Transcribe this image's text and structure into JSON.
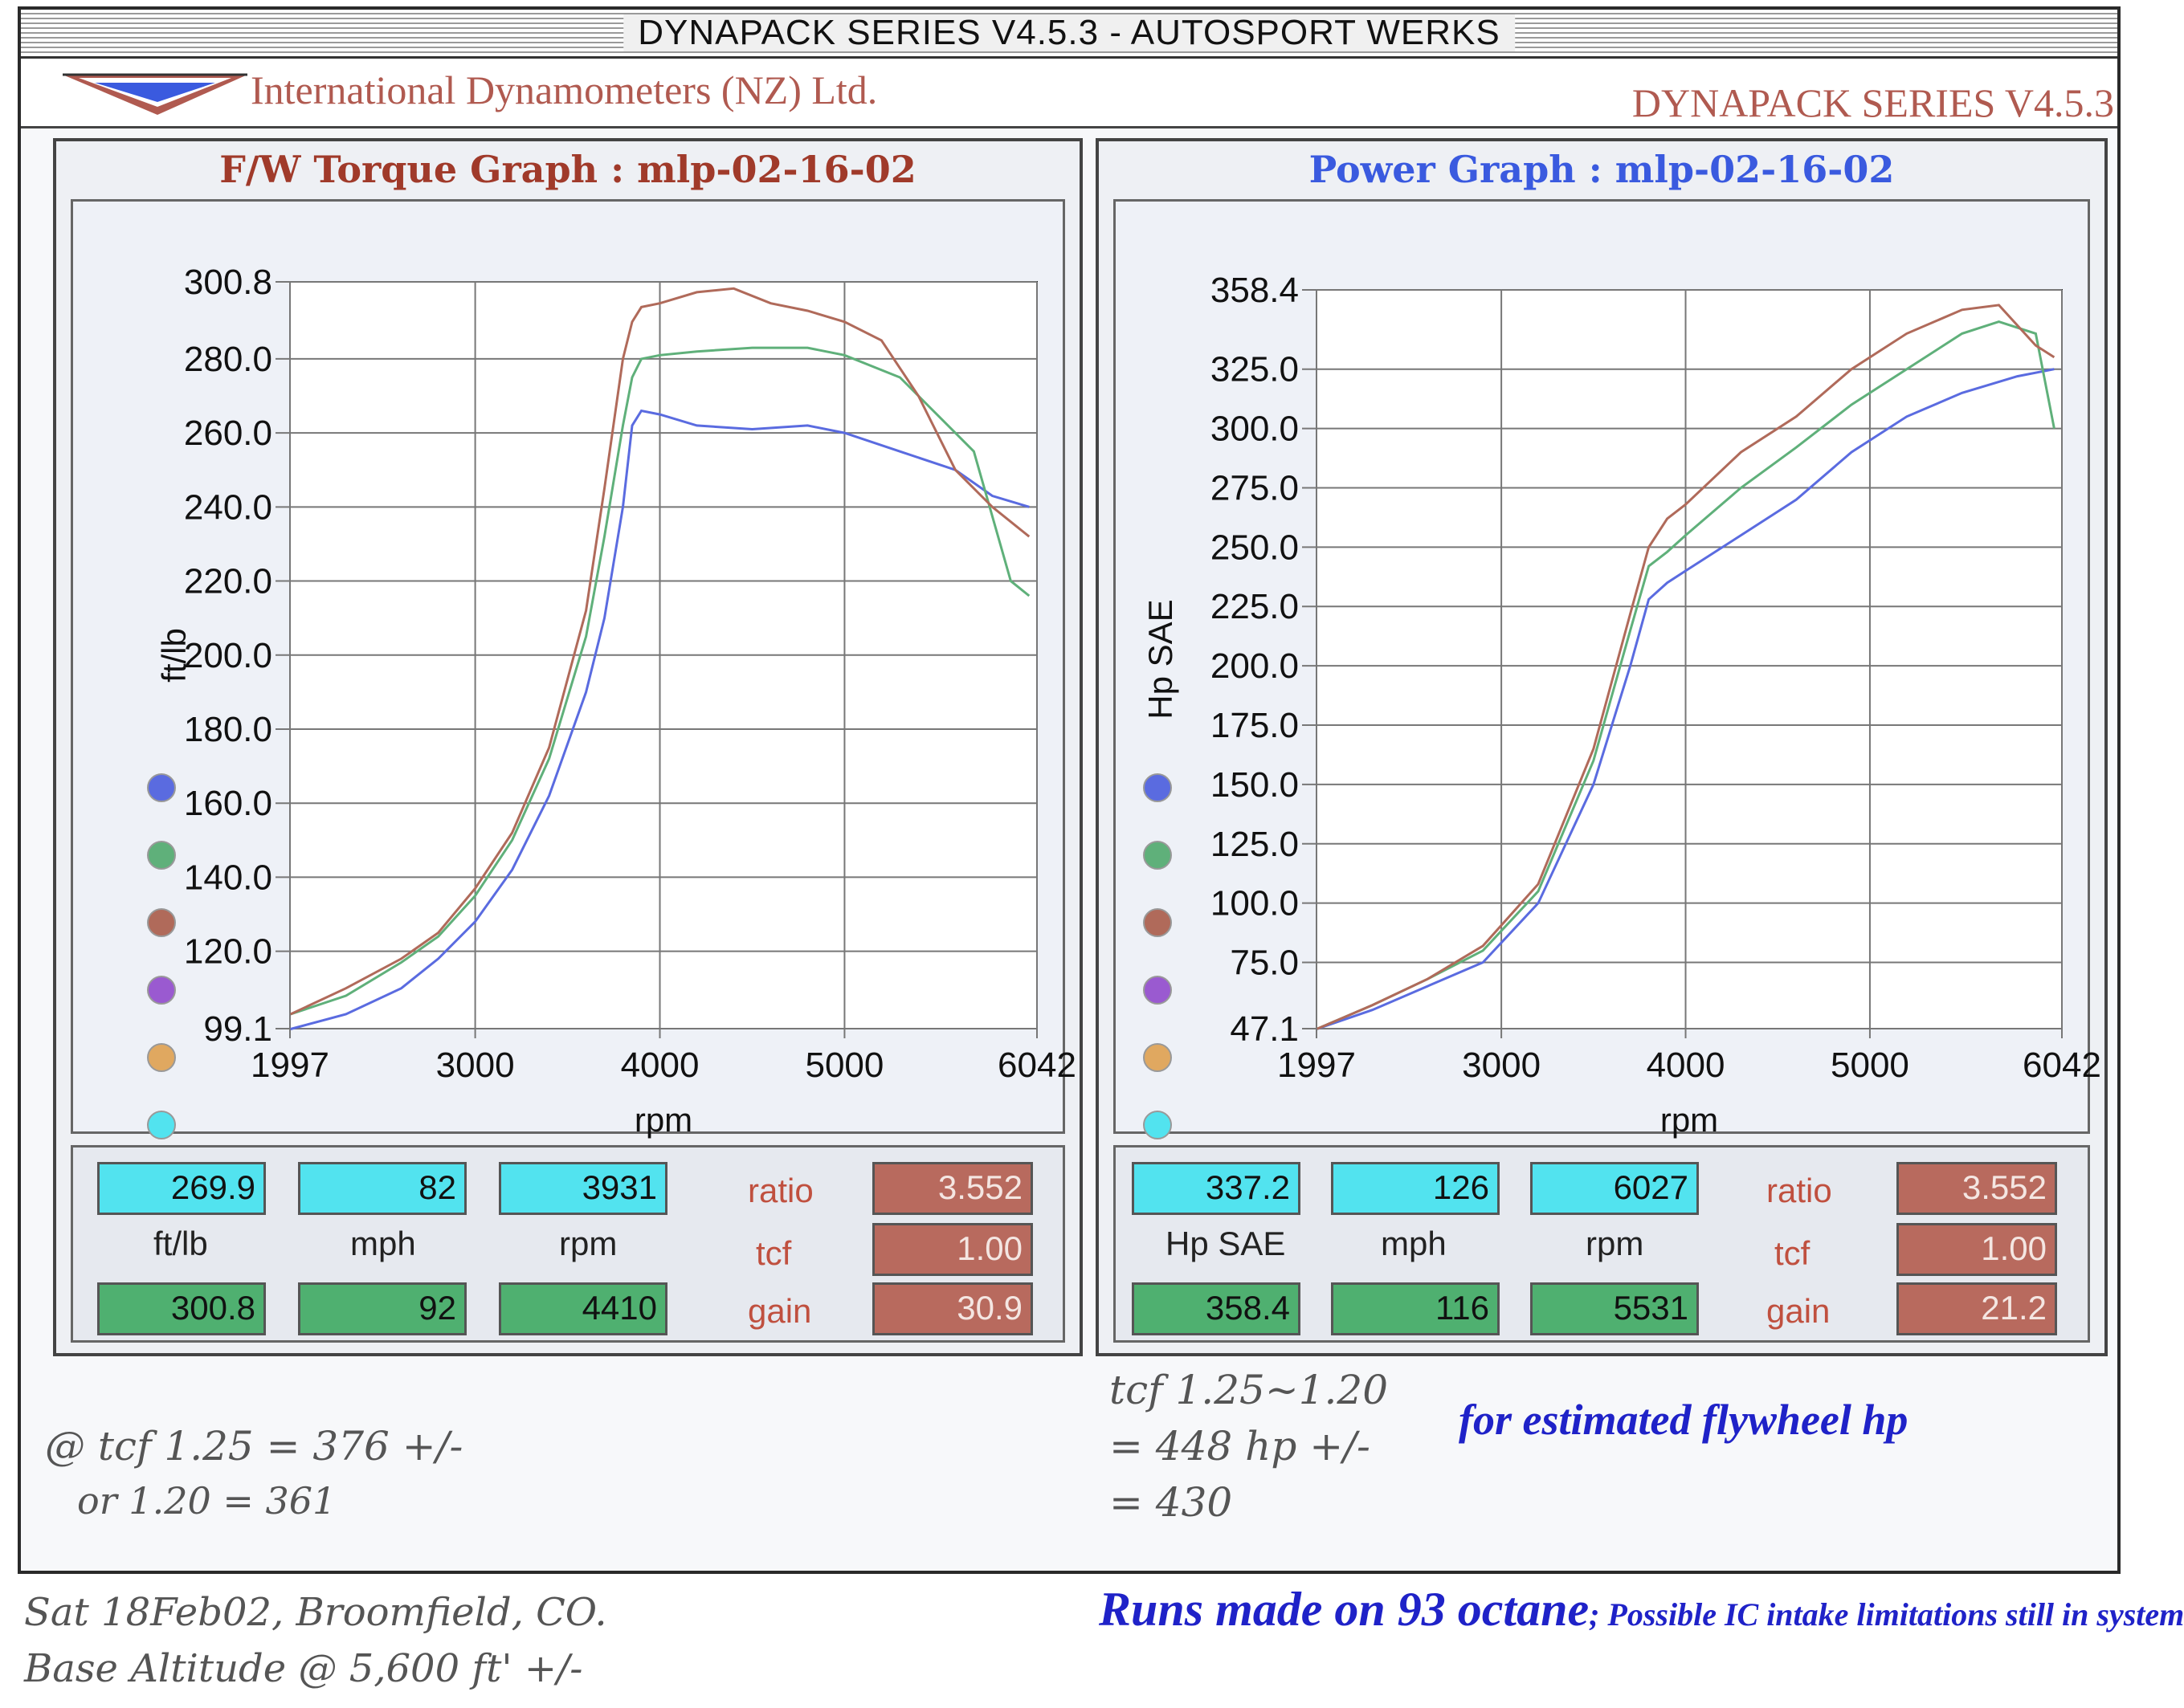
{
  "window_title": "DYNAPACK SERIES V4.5.3 - AUTOSPORT WERKS",
  "header": {
    "company": "International Dynamometers (NZ) Ltd.",
    "series": "DYNAPACK SERIES V4.5.3"
  },
  "torque_panel": {
    "title": "F/W Torque Graph : mlp-02-16-02",
    "live": {
      "value": "269.9",
      "unit": "ft/lb",
      "mph": "82",
      "mph_label": "mph",
      "rpm": "3931",
      "rpm_label": "rpm"
    },
    "peak": {
      "value": "300.8",
      "mph": "92",
      "rpm": "4410"
    },
    "ratio_label": "ratio",
    "ratio": "3.552",
    "tcf_label": "tcf",
    "tcf": "1.00",
    "gain_label": "gain",
    "gain": "30.9"
  },
  "power_panel": {
    "title": "Power Graph : mlp-02-16-02",
    "live": {
      "value": "337.2",
      "unit": "Hp SAE",
      "mph": "126",
      "mph_label": "mph",
      "rpm": "6027",
      "rpm_label": "rpm"
    },
    "peak": {
      "value": "358.4",
      "mph": "116",
      "rpm": "5531"
    },
    "ratio_label": "ratio",
    "ratio": "3.552",
    "tcf_label": "tcf",
    "tcf": "1.00",
    "gain_label": "gain",
    "gain": "21.2"
  },
  "series_colors": [
    "#5a6be0",
    "#5fb07a",
    "#b06a5a",
    "#9a5ad0",
    "#e0a860",
    "#52e3ef"
  ],
  "chart_data": [
    {
      "type": "line",
      "title": "F/W Torque Graph : mlp-02-16-02",
      "xlabel": "rpm",
      "ylabel": "ft/lb",
      "xlim": [
        1997,
        6042
      ],
      "ylim": [
        99.1,
        300.8
      ],
      "xticks": [
        "1997",
        "3000",
        "4000",
        "5000",
        "6042"
      ],
      "yticks": [
        "300.8",
        "280.0",
        "260.0",
        "240.0",
        "220.0",
        "200.0",
        "180.0",
        "160.0",
        "140.0",
        "120.0",
        "99.1"
      ],
      "grid": true,
      "series": [
        {
          "color": "#5a6be0",
          "x": [
            2000,
            2300,
            2600,
            2800,
            3000,
            3200,
            3400,
            3600,
            3700,
            3800,
            3850,
            3900,
            4000,
            4200,
            4500,
            4800,
            5000,
            5300,
            5600,
            5800,
            6000
          ],
          "y": [
            99,
            103,
            110,
            118,
            128,
            142,
            162,
            190,
            210,
            240,
            262,
            266,
            265,
            262,
            261,
            262,
            260,
            255,
            250,
            243,
            240
          ]
        },
        {
          "color": "#5fb07a",
          "x": [
            2000,
            2300,
            2600,
            2800,
            3000,
            3200,
            3400,
            3600,
            3700,
            3800,
            3850,
            3900,
            4000,
            4200,
            4500,
            4800,
            5000,
            5300,
            5500,
            5700,
            5900,
            6000
          ],
          "y": [
            103,
            108,
            117,
            124,
            135,
            150,
            172,
            205,
            232,
            262,
            275,
            280,
            281,
            282,
            283,
            283,
            281,
            275,
            265,
            255,
            220,
            216
          ]
        },
        {
          "color": "#b06a5a",
          "x": [
            2000,
            2300,
            2600,
            2800,
            3000,
            3200,
            3400,
            3600,
            3700,
            3800,
            3850,
            3900,
            4000,
            4200,
            4400,
            4600,
            4800,
            5000,
            5200,
            5400,
            5600,
            5800,
            6000
          ],
          "y": [
            103,
            110,
            118,
            125,
            137,
            152,
            175,
            212,
            245,
            280,
            290,
            294,
            295,
            298,
            299,
            295,
            293,
            290,
            285,
            270,
            250,
            240,
            232
          ]
        }
      ]
    },
    {
      "type": "line",
      "title": "Power Graph : mlp-02-16-02",
      "xlabel": "rpm",
      "ylabel": "Hp SAE",
      "xlim": [
        1997,
        6042
      ],
      "ylim": [
        47.1,
        358.4
      ],
      "xticks": [
        "1997",
        "3000",
        "4000",
        "5000",
        "6042"
      ],
      "yticks": [
        "358.4",
        "325.0",
        "300.0",
        "275.0",
        "250.0",
        "225.0",
        "200.0",
        "175.0",
        "150.0",
        "125.0",
        "100.0",
        "75.0",
        "47.1"
      ],
      "grid": true,
      "series": [
        {
          "color": "#5a6be0",
          "x": [
            2000,
            2300,
            2600,
            2900,
            3200,
            3500,
            3700,
            3800,
            3900,
            4000,
            4300,
            4600,
            4900,
            5200,
            5500,
            5800,
            6000
          ],
          "y": [
            47,
            55,
            65,
            75,
            100,
            150,
            200,
            228,
            235,
            240,
            255,
            270,
            290,
            305,
            315,
            322,
            325
          ]
        },
        {
          "color": "#5fb07a",
          "x": [
            2000,
            2300,
            2600,
            2900,
            3200,
            3500,
            3700,
            3800,
            3900,
            4000,
            4300,
            4600,
            4900,
            5200,
            5500,
            5700,
            5900,
            6000
          ],
          "y": [
            47,
            57,
            68,
            80,
            105,
            160,
            215,
            242,
            248,
            255,
            275,
            292,
            310,
            325,
            340,
            345,
            340,
            300
          ]
        },
        {
          "color": "#b06a5a",
          "x": [
            2000,
            2300,
            2600,
            2900,
            3200,
            3500,
            3700,
            3800,
            3900,
            4000,
            4300,
            4600,
            4900,
            5200,
            5500,
            5700,
            5900,
            6000
          ],
          "y": [
            47,
            57,
            68,
            82,
            108,
            165,
            222,
            250,
            262,
            268,
            290,
            305,
            325,
            340,
            350,
            352,
            335,
            330
          ]
        }
      ]
    }
  ],
  "annotations": {
    "tcf_left_line1": "@ tcf 1.25 = 376 +/-",
    "tcf_left_line2": "or 1.20 = 361",
    "tcf_right_line1": "tcf 1.25~1.20",
    "tcf_right_line2": "= 448 hp +/-",
    "tcf_right_line3": "= 430",
    "estimated_note": "for estimated flywheel hp",
    "hand_location_1": "Sat 18Feb02, Broomfield, CO.",
    "hand_location_2": "Base Altitude @ 5,600 ft' +/-",
    "runs_note_big": "Runs made on 93 octane",
    "runs_note_small": "; Possible IC intake limitations still in system"
  }
}
